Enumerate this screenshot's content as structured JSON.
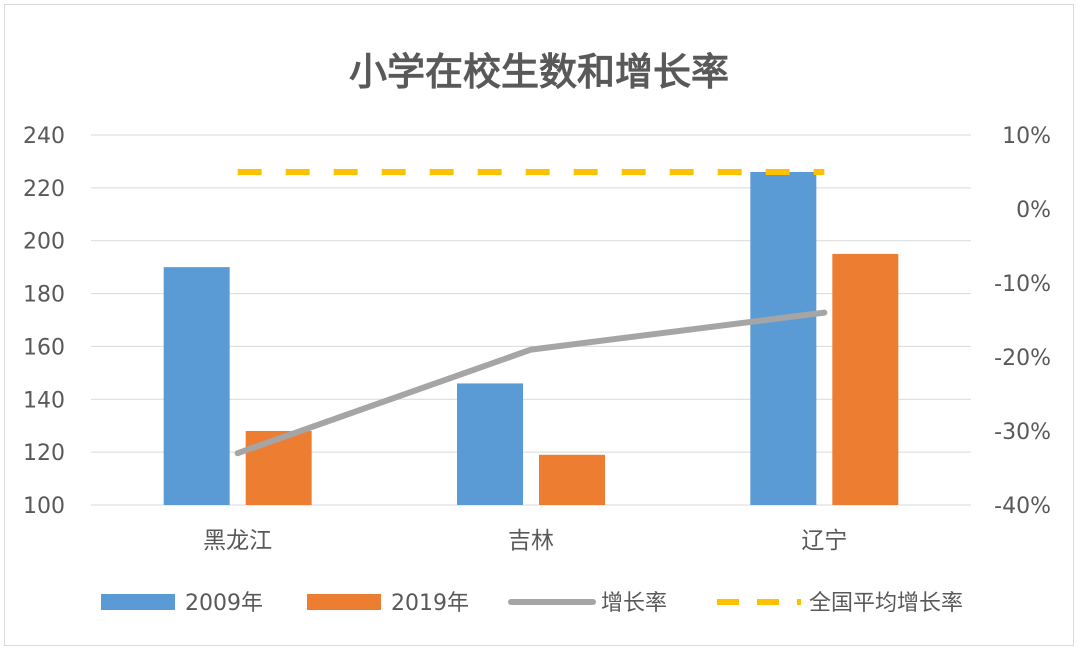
{
  "chart_data": {
    "type": "bar",
    "title": "小学在校生数和增长率",
    "categories": [
      "黑龙江",
      "吉林",
      "辽宁"
    ],
    "series": [
      {
        "name": "2009年",
        "kind": "bar",
        "axis": "left",
        "color": "#5b9bd5",
        "values": [
          190,
          146,
          226
        ]
      },
      {
        "name": "2019年",
        "kind": "bar",
        "axis": "left",
        "color": "#ed7d31",
        "values": [
          128,
          119,
          195
        ]
      },
      {
        "name": "增长率",
        "kind": "line",
        "axis": "right",
        "color": "#a5a5a5",
        "values": [
          -33,
          -19,
          -14
        ]
      },
      {
        "name": "全国平均增长率",
        "kind": "dashed-line",
        "axis": "right",
        "color": "#ffc000",
        "values": [
          5,
          5,
          5
        ]
      }
    ],
    "left_axis": {
      "min": 100,
      "max": 240,
      "step": 20,
      "ticks": [
        "240",
        "220",
        "200",
        "180",
        "160",
        "140",
        "120",
        "100"
      ]
    },
    "right_axis": {
      "min": -40,
      "max": 10,
      "step": 10,
      "ticks": [
        "10%",
        "0%",
        "-10%",
        "-20%",
        "-30%",
        "-40%"
      ]
    },
    "legend_position": "bottom",
    "grid": true
  }
}
